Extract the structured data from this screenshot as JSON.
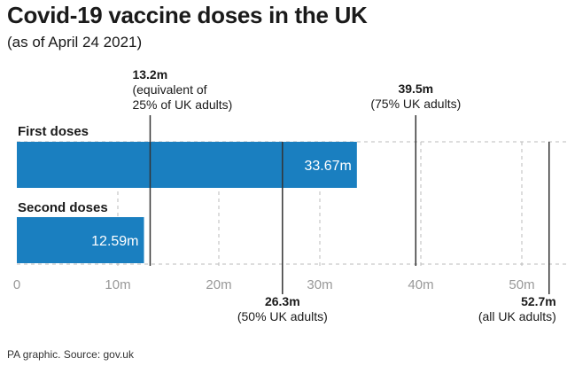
{
  "title": "Covid-19 vaccine doses in the UK",
  "subtitle": "(as of April 24 2021)",
  "source": "PA graphic. Source: gov.uk",
  "colors": {
    "bar": "#1a7fc0",
    "reference_line": "#333333",
    "grid": "#bbbbbb",
    "text": "#1a1a1a",
    "tick_text": "#999999"
  },
  "chart_data": {
    "type": "bar",
    "orientation": "horizontal",
    "title": "Covid-19 vaccine doses in the UK",
    "subtitle": "(as of April 24 2021)",
    "unit": "m",
    "categories": [
      "First doses",
      "Second doses"
    ],
    "values": [
      33.67,
      12.59
    ],
    "value_labels": [
      "33.67m",
      "12.59m"
    ],
    "xlim": [
      0,
      55
    ],
    "xticks": [
      0,
      10,
      20,
      30,
      40,
      50
    ],
    "xtick_labels": [
      "0",
      "10m",
      "20m",
      "30m",
      "40m",
      "50m"
    ],
    "grid": "dashed vertical",
    "reference_lines": [
      {
        "x": 13.2,
        "label_lines": [
          "13.2m",
          "(equivalent of",
          "25% of UK adults)"
        ],
        "label_position": "top"
      },
      {
        "x": 39.5,
        "label_lines": [
          "39.5m",
          "(75% UK adults)"
        ],
        "label_position": "top"
      },
      {
        "x": 26.3,
        "label_lines": [
          "26.3m",
          "(50% UK adults)"
        ],
        "label_position": "bottom"
      },
      {
        "x": 52.7,
        "label_lines": [
          "52.7m",
          "(all UK adults)"
        ],
        "label_position": "bottom"
      }
    ]
  }
}
